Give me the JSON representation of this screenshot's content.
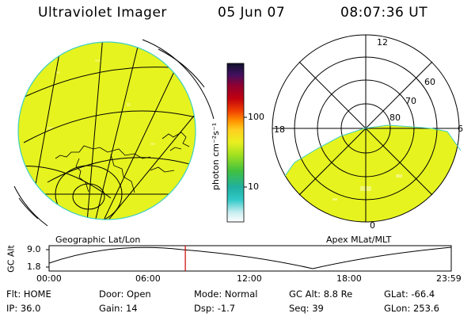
{
  "header": {
    "instrument": "Ultraviolet Imager",
    "date": "05 Jun 07",
    "time": "08:07:36 UT"
  },
  "colorbar": {
    "unit_label": "photon cm⁻²s⁻¹",
    "ticks": [
      "100",
      "10"
    ]
  },
  "left_panel": {
    "label": "Geographic Lat/Lon"
  },
  "right_panel": {
    "label": "Apex MLat/MLT",
    "mlt_labels": {
      "top": "12",
      "left": "18",
      "right": "6",
      "bottom": "0"
    },
    "lat_labels": [
      "60",
      "70",
      "80"
    ]
  },
  "altitude_plot": {
    "ylabel": "GC Alt",
    "yticks": [
      "9.0",
      "1.8"
    ],
    "xticks": [
      "00:00",
      "06:00",
      "12:00",
      "18:00",
      "23:59"
    ],
    "current_marker_hours": 8.13
  },
  "status": {
    "row1": [
      {
        "label": "Flt:",
        "value": "HOME"
      },
      {
        "label": "Door:",
        "value": "Open"
      },
      {
        "label": "Mode:",
        "value": "Normal"
      },
      {
        "label": "GC Alt:",
        "value": "8.8 Re"
      },
      {
        "label": "GLat:",
        "value": "-66.4"
      }
    ],
    "row2": [
      {
        "label": "IP:",
        "value": "36.0"
      },
      {
        "label": "Gain:",
        "value": "14"
      },
      {
        "label": "Dsp:",
        "value": "-1.7"
      },
      {
        "label": "Seq:",
        "value": "39"
      },
      {
        "label": "GLon:",
        "value": "253.6"
      }
    ]
  },
  "colors": {
    "emission": "#e6f31f",
    "outline": "#3fd0c0",
    "marker": "#cc0000"
  }
}
